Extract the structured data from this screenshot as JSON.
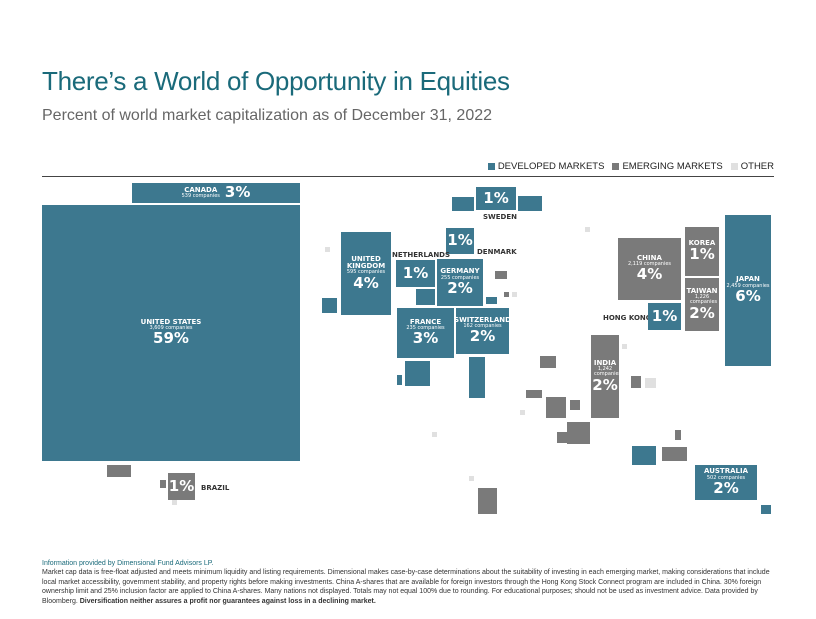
{
  "header": {
    "title": "There’s a World of Opportunity in Equities",
    "subtitle": "Percent of world market capitalization as of December 31, 2022"
  },
  "legend": [
    {
      "label": "DEVELOPED MARKETS",
      "color": "#3d788f"
    },
    {
      "label": "EMERGING MARKETS",
      "color": "#7a7a7a"
    },
    {
      "label": "OTHER",
      "color": "#e0e0e0"
    }
  ],
  "chart_data": {
    "type": "treemap-map",
    "title": "There’s a World of Opportunity in Equities",
    "subtitle": "Percent of world market capitalization as of December 31, 2022",
    "countries": [
      {
        "name": "UNITED STATES",
        "companies": "3,609 companies",
        "percent": "59%",
        "value": 59,
        "group": "developed"
      },
      {
        "name": "CANADA",
        "companies": "539 companies",
        "percent": "3%",
        "value": 3,
        "group": "developed"
      },
      {
        "name": "UNITED KINGDOM",
        "companies": "595 companies",
        "percent": "4%",
        "value": 4,
        "group": "developed"
      },
      {
        "name": "SWEDEN",
        "percent": "1%",
        "value": 1,
        "group": "developed"
      },
      {
        "name": "DENMARK",
        "percent": "1%",
        "value": 1,
        "group": "developed"
      },
      {
        "name": "NETHERLANDS",
        "percent": "1%",
        "value": 1,
        "group": "developed"
      },
      {
        "name": "GERMANY",
        "companies": "255 companies",
        "percent": "2%",
        "value": 2,
        "group": "developed"
      },
      {
        "name": "FRANCE",
        "companies": "235 companies",
        "percent": "3%",
        "value": 3,
        "group": "developed"
      },
      {
        "name": "SWITZERLAND",
        "companies": "162 companies",
        "percent": "2%",
        "value": 2,
        "group": "developed"
      },
      {
        "name": "CHINA",
        "companies": "2,119 companies",
        "percent": "4%",
        "value": 4,
        "group": "emerging"
      },
      {
        "name": "KOREA",
        "percent": "1%",
        "value": 1,
        "group": "emerging"
      },
      {
        "name": "TAIWAN",
        "companies": "1,226 companies",
        "percent": "2%",
        "value": 2,
        "group": "emerging"
      },
      {
        "name": "HONG KONG",
        "percent": "1%",
        "value": 1,
        "group": "developed"
      },
      {
        "name": "JAPAN",
        "companies": "2,459 companies",
        "percent": "6%",
        "value": 6,
        "group": "developed"
      },
      {
        "name": "INDIA",
        "companies": "1,242 companies",
        "percent": "2%",
        "value": 2,
        "group": "emerging"
      },
      {
        "name": "AUSTRALIA",
        "companies": "502 companies",
        "percent": "2%",
        "value": 2,
        "group": "developed"
      },
      {
        "name": "BRAZIL",
        "percent": "1%",
        "value": 1,
        "group": "emerging"
      }
    ]
  },
  "footer": {
    "source": "Information provided by Dimensional Fund Advisors LP.",
    "body": "Market cap data is free-float adjusted and meets minimum liquidity and listing requirements. Dimensional makes case-by-case determinations about the suitability of investing in each emerging market, making considerations that include local market accessibility, government stability, and property rights before making investments. China A-shares that are available for foreign investors through the Hong Kong Stock Connect program are included in China. 30% foreign ownership limit and 25% inclusion factor are applied to China A-shares. Many nations not displayed. Totals may not equal 100% due to rounding. For educational purposes; should not be used as investment advice. Data provided by Bloomberg.",
    "bold": "Diversification neither assures a profit nor guarantees against loss in a declining market."
  }
}
